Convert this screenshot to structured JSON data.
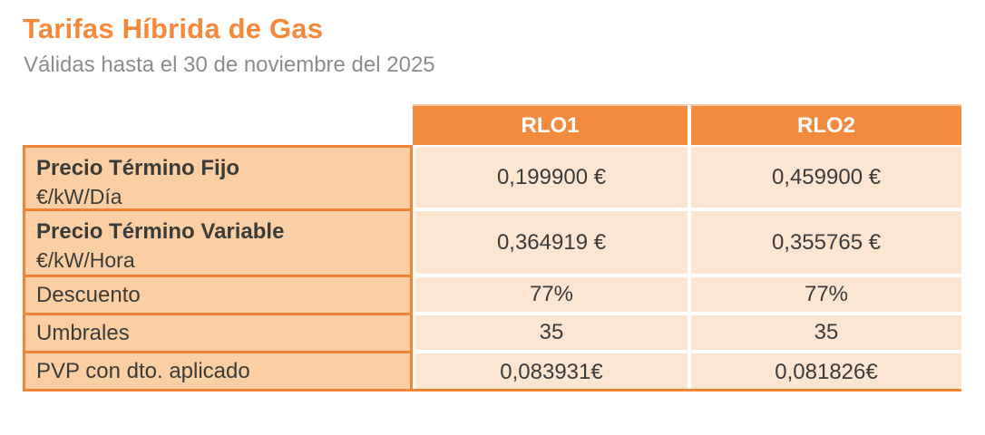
{
  "header": {
    "title": "Tarifas Híbrida de Gas",
    "subtitle": "Válidas hasta el 30 de noviembre del 2025"
  },
  "colors": {
    "accent_orange": "#F28B3D",
    "border_orange": "#EE8434",
    "label_cell_bg": "#FBCFA3",
    "value_cell_bg": "#FCE5D1",
    "title_orange": "#F5883B",
    "subtitle_gray": "#8C8C8C",
    "text_dark": "#3B3B3A"
  },
  "table": {
    "columns": [
      "RLO1",
      "RLO2"
    ],
    "rows": [
      {
        "label": "Precio Término Fijo",
        "sublabel": "€/kW/Día",
        "values": [
          "0,199900 €",
          "0,459900 €"
        ]
      },
      {
        "label": "Precio Término Variable",
        "sublabel": "€/kW/Hora",
        "values": [
          "0,364919 €",
          "0,355765 €"
        ]
      },
      {
        "label": "Descuento",
        "values": [
          "77%",
          "77%"
        ]
      },
      {
        "label": "Umbrales",
        "values": [
          "35",
          "35"
        ]
      },
      {
        "label": "PVP con dto. aplicado",
        "values": [
          "0,083931€",
          "0,081826€"
        ]
      }
    ]
  }
}
